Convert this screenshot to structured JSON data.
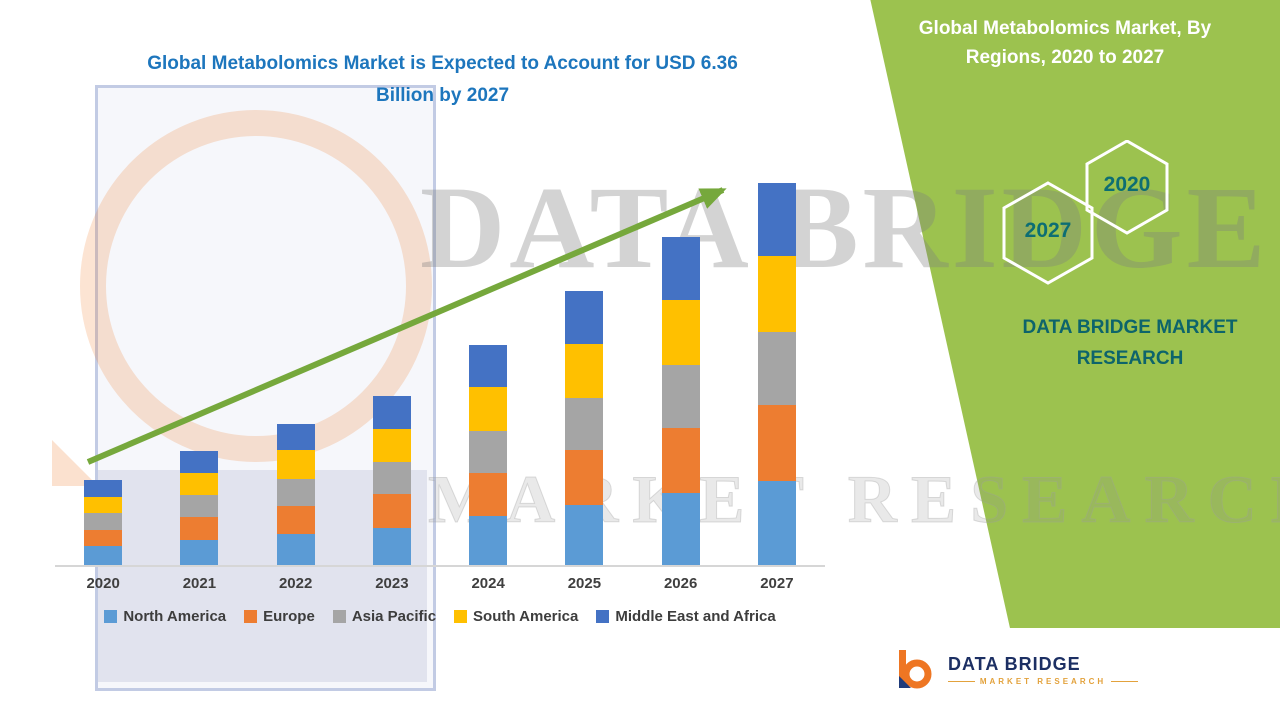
{
  "header": {
    "main_title": "Global Metabolomics Market is Expected to Account for USD 6.36 Billion by 2027",
    "panel_title": "Global Metabolomics Market, By Regions, 2020 to 2027"
  },
  "side_panel": {
    "panel_color": "#9cc24f",
    "hexagon_back_year": "2020",
    "hexagon_front_year": "2027",
    "brand_name": "DATA BRIDGE MARKET RESEARCH",
    "accent_teal": "#0d646b"
  },
  "watermark": {
    "line1": "DATA BRIDGE",
    "line2": "MARKET RESEARCH"
  },
  "footer_logo": {
    "name": "DATA BRIDGE",
    "tagline": "MARKET RESEARCH"
  },
  "chart_data": {
    "type": "bar",
    "stacked": true,
    "title": "Global Metabolomics Market is Expected to Account for USD 6.36 Billion by 2027",
    "unit": "USD Billion",
    "categories": [
      "2020",
      "2021",
      "2022",
      "2023",
      "2024",
      "2025",
      "2026",
      "2027"
    ],
    "series": [
      {
        "name": "North America",
        "color": "#5B9BD5",
        "values": [
          0.31,
          0.42,
          0.52,
          0.62,
          0.81,
          1.0,
          1.2,
          1.4
        ]
      },
      {
        "name": "Europe",
        "color": "#ED7D31",
        "values": [
          0.28,
          0.38,
          0.47,
          0.56,
          0.73,
          0.91,
          1.09,
          1.27
        ]
      },
      {
        "name": "Asia Pacific",
        "color": "#A5A5A5",
        "values": [
          0.27,
          0.36,
          0.45,
          0.53,
          0.7,
          0.87,
          1.04,
          1.21
        ]
      },
      {
        "name": "South America",
        "color": "#FFC000",
        "values": [
          0.28,
          0.38,
          0.47,
          0.56,
          0.73,
          0.91,
          1.09,
          1.27
        ]
      },
      {
        "name": "Middle East and Africa",
        "color": "#4472C4",
        "values": [
          0.27,
          0.36,
          0.44,
          0.54,
          0.69,
          0.87,
          1.04,
          1.21
        ]
      }
    ],
    "totals": [
      1.41,
      1.9,
      2.35,
      2.81,
      3.66,
      4.56,
      5.46,
      6.36
    ],
    "ylim": [
      0,
      7
    ],
    "grid": false,
    "legend_position": "bottom",
    "trend_arrow": true,
    "trend_arrow_color": "#76a83c"
  }
}
